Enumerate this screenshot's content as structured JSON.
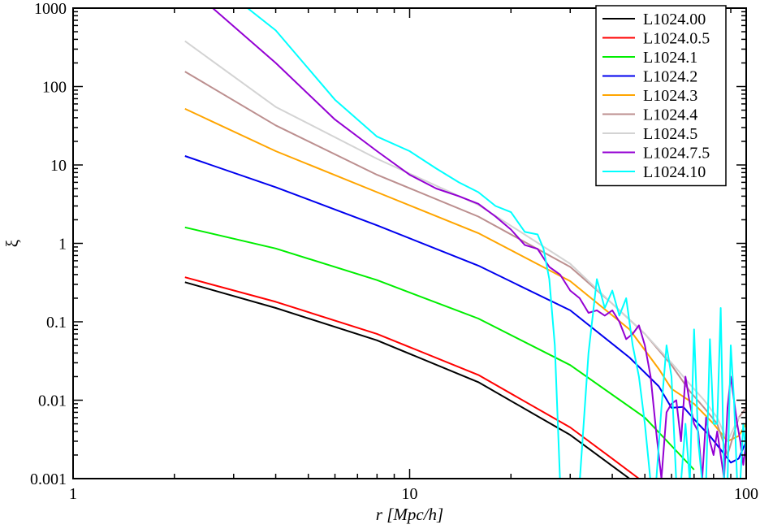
{
  "chart_data": {
    "type": "line",
    "title": "",
    "xlabel": "r [Mpc/h]",
    "ylabel": "ξ",
    "xscale": "log",
    "yscale": "log",
    "xlim": [
      1,
      100
    ],
    "ylim": [
      0.001,
      1000
    ],
    "xticks": [
      {
        "value": 1,
        "label": "1"
      },
      {
        "value": 10,
        "label": "10"
      },
      {
        "value": 100,
        "label": "100"
      }
    ],
    "yticks": [
      {
        "value": 0.001,
        "label": "0.001"
      },
      {
        "value": 0.01,
        "label": "0.01"
      },
      {
        "value": 0.1,
        "label": "0.1"
      },
      {
        "value": 1,
        "label": "1"
      },
      {
        "value": 10,
        "label": "10"
      },
      {
        "value": 100,
        "label": "100"
      },
      {
        "value": 1000,
        "label": "1000"
      }
    ],
    "grid": false,
    "legend_position": "top-right",
    "series": [
      {
        "name": "L1024.00",
        "color": "#000000",
        "x": [
          2.15,
          4,
          8,
          16,
          30,
          45
        ],
        "y": [
          0.32,
          0.15,
          0.058,
          0.017,
          0.0036,
          0.001
        ]
      },
      {
        "name": "L1024.0.5",
        "color": "#ff0000",
        "x": [
          2.15,
          4,
          8,
          16,
          30,
          40,
          48
        ],
        "y": [
          0.37,
          0.18,
          0.07,
          0.021,
          0.0045,
          0.0018,
          0.001
        ]
      },
      {
        "name": "L1024.1",
        "color": "#00ee00",
        "x": [
          2.15,
          4,
          8,
          16,
          30,
          50,
          70
        ],
        "y": [
          1.6,
          0.86,
          0.34,
          0.11,
          0.028,
          0.006,
          0.0013
        ]
      },
      {
        "name": "L1024.2",
        "color": "#0000ee",
        "x": [
          2.15,
          4,
          8,
          16,
          30,
          45,
          55,
          60,
          65,
          72,
          78,
          85,
          90,
          95,
          100
        ],
        "y": [
          13,
          5.2,
          1.7,
          0.52,
          0.14,
          0.035,
          0.015,
          0.008,
          0.0082,
          0.005,
          0.0035,
          0.0022,
          0.0016,
          0.0018,
          0.003
        ]
      },
      {
        "name": "L1024.3",
        "color": "#ffa500",
        "x": [
          2.15,
          4,
          8,
          16,
          30,
          45,
          55,
          60,
          70,
          80,
          88,
          95,
          100
        ],
        "y": [
          52,
          15,
          4.5,
          1.35,
          0.33,
          0.08,
          0.025,
          0.014,
          0.009,
          0.005,
          0.003,
          0.0035,
          0.005
        ]
      },
      {
        "name": "L1024.4",
        "color": "#bc8f8f",
        "x": [
          2.15,
          4,
          8,
          16,
          30,
          40,
          50,
          60,
          68,
          75,
          82,
          88,
          95,
          100
        ],
        "y": [
          155,
          32,
          7.5,
          2.2,
          0.5,
          0.17,
          0.07,
          0.028,
          0.013,
          0.008,
          0.005,
          0.002,
          0.006,
          0.008
        ]
      },
      {
        "name": "L1024.5",
        "color": "#d3d3d3",
        "x": [
          2.15,
          4,
          8,
          16,
          30,
          40,
          50,
          60,
          68,
          75,
          82,
          88,
          95,
          100
        ],
        "y": [
          380,
          55,
          12,
          3.1,
          0.55,
          0.17,
          0.07,
          0.03,
          0.016,
          0.01,
          0.006,
          0.003,
          0.006,
          0.006
        ]
      },
      {
        "name": "L1024.7.5",
        "color": "#9400d3",
        "x": [
          2.15,
          2.6,
          4,
          6,
          8,
          10,
          12,
          14,
          16,
          18,
          20,
          22,
          24,
          26,
          28,
          30,
          32,
          34,
          36,
          38,
          40,
          42,
          44,
          46,
          48,
          50,
          52,
          54,
          56,
          58,
          60,
          62,
          64,
          66,
          68,
          70,
          72,
          74,
          76,
          78,
          80,
          82,
          84,
          86,
          88,
          90,
          92,
          94,
          96,
          98,
          100
        ],
        "y": [
          1500,
          1000,
          200,
          38,
          15,
          7.5,
          5,
          4,
          3.2,
          2.2,
          1.5,
          0.95,
          0.85,
          0.5,
          0.4,
          0.25,
          0.2,
          0.13,
          0.14,
          0.12,
          0.14,
          0.1,
          0.06,
          0.07,
          0.09,
          0.05,
          0.02,
          0.004,
          0.001,
          0.007,
          0.009,
          0.01,
          0.003,
          0.02,
          0.009,
          0.005,
          0.004,
          0.001,
          0.006,
          0.003,
          0.002,
          0.004,
          0.002,
          0.001,
          0.008,
          0.02,
          0.01,
          0.005,
          0.003,
          0.0015,
          0.003
        ]
      },
      {
        "name": "L1024.10",
        "color": "#00ffff",
        "x": [
          3.3,
          4,
          6,
          8,
          10,
          12,
          14,
          16,
          18,
          20,
          22,
          24,
          25,
          26,
          27,
          28,
          29,
          30,
          32,
          34,
          36,
          38,
          40,
          42,
          44,
          46,
          48,
          50,
          52,
          54,
          56,
          58,
          60,
          62,
          64,
          66,
          68,
          70,
          72,
          74,
          76,
          78,
          80,
          82,
          84,
          86,
          88,
          90,
          92,
          94,
          96,
          98,
          100
        ],
        "y": [
          1000,
          520,
          68,
          23,
          15,
          9,
          6,
          4.5,
          3,
          2.5,
          1.4,
          1.3,
          0.85,
          0.35,
          0.05,
          0.0009,
          0.0009,
          0.0009,
          0.0009,
          0.04,
          0.35,
          0.15,
          0.25,
          0.12,
          0.2,
          0.05,
          0.02,
          0.005,
          0.0009,
          0.0009,
          0.008,
          0.05,
          0.02,
          0.0009,
          0.0009,
          0.005,
          0.0009,
          0.08,
          0.003,
          0.0009,
          0.0009,
          0.06,
          0.005,
          0.005,
          0.15,
          0.0009,
          0.0009,
          0.05,
          0.01,
          0.0009,
          0.0009,
          0.005,
          0.002
        ]
      }
    ]
  }
}
